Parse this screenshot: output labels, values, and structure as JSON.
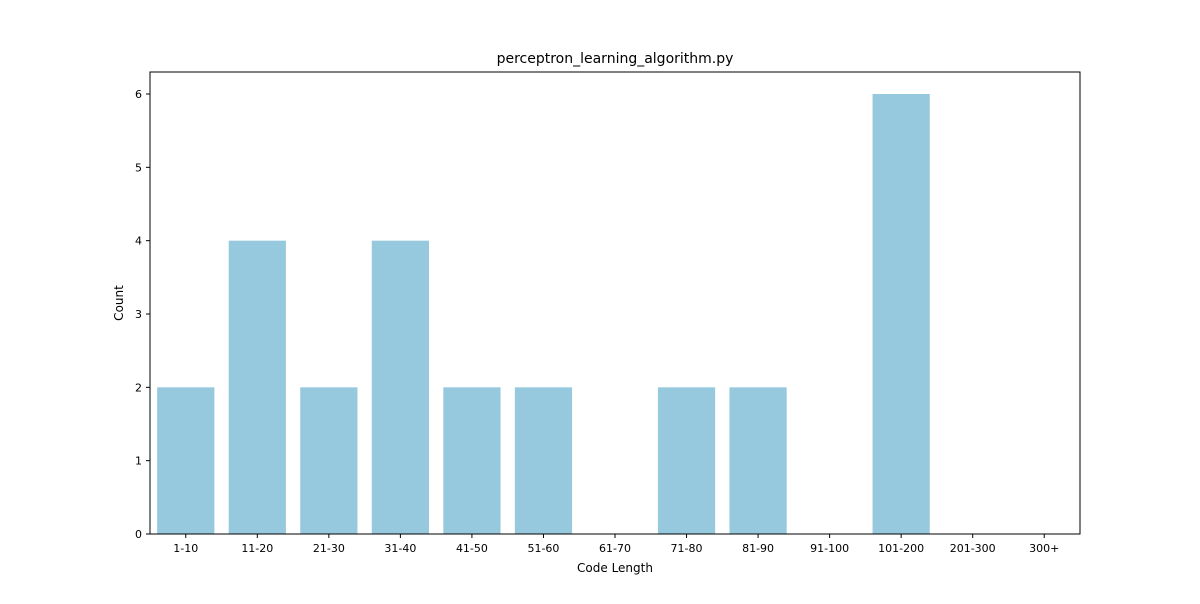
{
  "chart_data": {
    "type": "bar",
    "title": "perceptron_learning_algorithm.py",
    "xlabel": "Code Length",
    "ylabel": "Count",
    "categories": [
      "1-10",
      "11-20",
      "21-30",
      "31-40",
      "41-50",
      "51-60",
      "61-70",
      "71-80",
      "81-90",
      "91-100",
      "101-200",
      "201-300",
      "300+"
    ],
    "values": [
      2,
      4,
      2,
      4,
      2,
      2,
      0,
      2,
      2,
      0,
      6,
      0,
      0
    ],
    "ylim": [
      0,
      6.3
    ],
    "yticks": [
      0,
      1,
      2,
      3,
      4,
      5,
      6
    ],
    "grid": false,
    "bar_color": "#96c9de"
  }
}
